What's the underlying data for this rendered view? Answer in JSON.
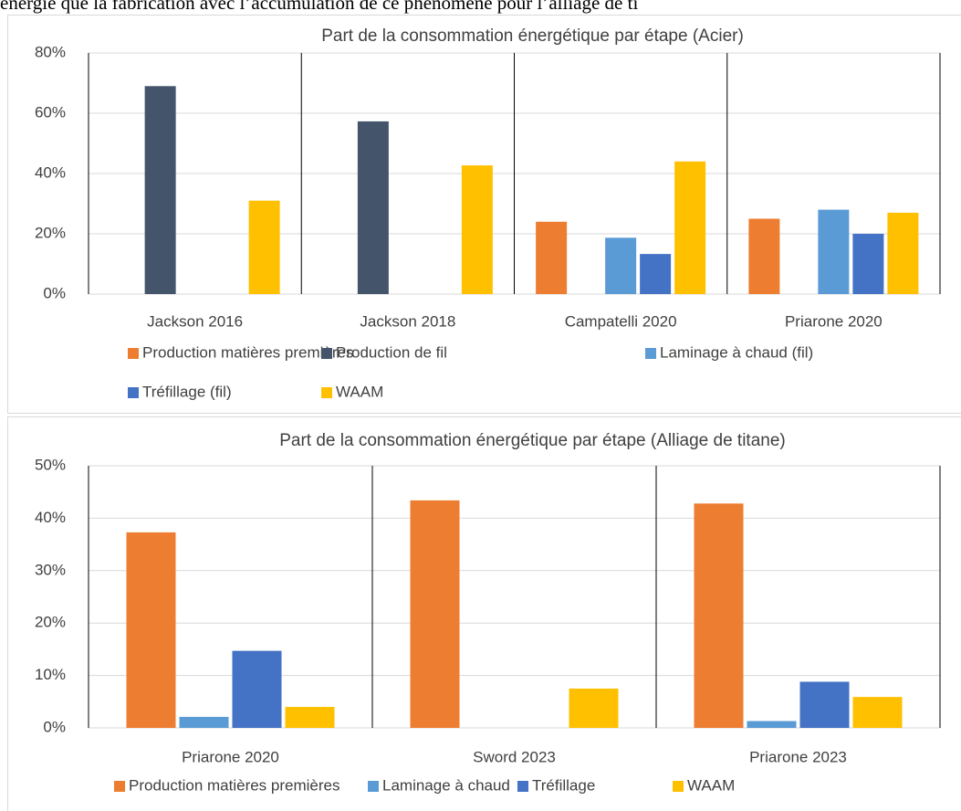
{
  "header_text": "énergie que la fabrication avec l’accumulation de ce phénomène pour l’alliage de ti",
  "chart_data": [
    {
      "type": "bar",
      "title": "Part de la consommation énergétique par étape (Acier)",
      "categories": [
        "Jackson 2016",
        "Jackson 2018",
        "Campatelli 2020",
        "Priarone 2020"
      ],
      "series": [
        {
          "name": "Production matières premières",
          "color": "#ED7D31",
          "values": [
            0,
            0,
            24,
            25
          ]
        },
        {
          "name": "Production de fil",
          "color": "#44546A",
          "values": [
            69,
            57.3,
            0,
            0
          ]
        },
        {
          "name": "Laminage à chaud (fil)",
          "color": "#5B9BD5",
          "values": [
            0,
            0,
            18.7,
            28
          ]
        },
        {
          "name": "Tréfillage (fil)",
          "color": "#4472C4",
          "values": [
            0,
            0,
            13.3,
            20
          ]
        },
        {
          "name": "WAAM",
          "color": "#FFC000",
          "values": [
            31,
            42.7,
            44,
            27
          ]
        }
      ],
      "ylim": [
        0,
        80
      ],
      "yticks": [
        {
          "value": 0,
          "label": "0%"
        },
        {
          "value": 20,
          "label": "20%"
        },
        {
          "value": 40,
          "label": "40%"
        },
        {
          "value": 60,
          "label": "60%"
        },
        {
          "value": 80,
          "label": "80%"
        }
      ],
      "grid": true,
      "legend": "bottom"
    },
    {
      "type": "bar",
      "title": "Part de la consommation énergétique par étape (Alliage de titane)",
      "categories": [
        "Priarone 2020",
        "Sword 2023",
        "Priarone 2023"
      ],
      "series": [
        {
          "name": "Production matières premières",
          "color": "#ED7D31",
          "values": [
            37.3,
            43.4,
            42.8
          ]
        },
        {
          "name": "Laminage à chaud",
          "color": "#5B9BD5",
          "values": [
            2.1,
            0,
            1.3
          ]
        },
        {
          "name": "Tréfillage",
          "color": "#4472C4",
          "values": [
            14.7,
            0,
            8.8
          ]
        },
        {
          "name": "WAAM",
          "color": "#FFC000",
          "values": [
            4.0,
            7.5,
            5.9
          ]
        }
      ],
      "ylim": [
        0,
        50
      ],
      "yticks": [
        {
          "value": 0,
          "label": "0%"
        },
        {
          "value": 10,
          "label": "10%"
        },
        {
          "value": 20,
          "label": "20%"
        },
        {
          "value": 30,
          "label": "30%"
        },
        {
          "value": 40,
          "label": "40%"
        },
        {
          "value": 50,
          "label": "50%"
        }
      ],
      "grid": true,
      "legend": "bottom"
    }
  ]
}
